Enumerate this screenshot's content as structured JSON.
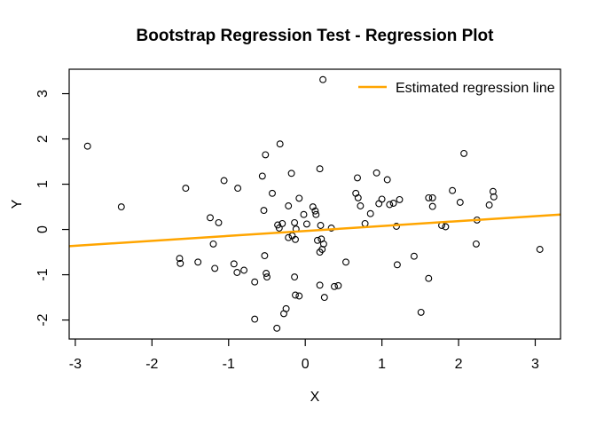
{
  "chart_data": {
    "type": "scatter",
    "title": "Bootstrap Regression Test - Regression Plot",
    "xlabel": "X",
    "ylabel": "Y",
    "xlim": [
      -3.08,
      3.33
    ],
    "ylim": [
      -2.42,
      3.54
    ],
    "x_ticks": [
      -3,
      -2,
      -1,
      0,
      1,
      2,
      3
    ],
    "x_tick_labels": [
      "-3",
      "-2",
      "-1",
      "0",
      "1",
      "2",
      "3"
    ],
    "y_ticks": [
      -2,
      -1,
      0,
      1,
      2,
      3
    ],
    "y_tick_labels": [
      "-2",
      "-1",
      "0",
      "1",
      "2",
      "3"
    ],
    "grid": false,
    "background_color": "#FFFFFF",
    "axis_color": "#000000",
    "legend": {
      "position": "top-right",
      "frame": false,
      "entries": [
        {
          "label": "Estimated regression line",
          "type": "line",
          "color": "#FFA500"
        }
      ]
    },
    "regression_line": {
      "slope": 0.109,
      "intercept": -0.033,
      "color": "#FFA500",
      "width": 2
    },
    "points_style": {
      "marker": "open-circle",
      "color": "#000000"
    },
    "points": [
      [
        -2.84,
        1.84
      ],
      [
        -2.4,
        0.5
      ],
      [
        -1.56,
        0.91
      ],
      [
        -1.24,
        0.26
      ],
      [
        -1.13,
        0.15
      ],
      [
        -1.2,
        -0.32
      ],
      [
        -1.06,
        1.08
      ],
      [
        -0.88,
        0.91
      ],
      [
        -0.56,
        1.18
      ],
      [
        -0.52,
        1.65
      ],
      [
        -0.33,
        1.89
      ],
      [
        -0.43,
        0.8
      ],
      [
        -0.54,
        0.42
      ],
      [
        -0.22,
        0.52
      ],
      [
        -0.18,
        1.24
      ],
      [
        -0.08,
        0.69
      ],
      [
        -0.02,
        0.33
      ],
      [
        0.19,
        1.34
      ],
      [
        0.23,
        3.31
      ],
      [
        0.1,
        0.5
      ],
      [
        0.13,
        0.41
      ],
      [
        0.14,
        0.33
      ],
      [
        -0.36,
        0.1
      ],
      [
        -0.3,
        0.13
      ],
      [
        -0.34,
        0.03
      ],
      [
        -0.14,
        0.15
      ],
      [
        -0.12,
        0.01
      ],
      [
        0.02,
        0.12
      ],
      [
        0.2,
        0.09
      ],
      [
        0.34,
        0.03
      ],
      [
        0.68,
        1.14
      ],
      [
        0.93,
        1.25
      ],
      [
        1.07,
        1.1
      ],
      [
        0.66,
        0.8
      ],
      [
        0.69,
        0.7
      ],
      [
        0.72,
        0.52
      ],
      [
        0.85,
        0.35
      ],
      [
        0.96,
        0.57
      ],
      [
        1.0,
        0.67
      ],
      [
        1.1,
        0.55
      ],
      [
        1.15,
        0.58
      ],
      [
        1.23,
        0.66
      ],
      [
        1.19,
        0.07
      ],
      [
        0.78,
        0.13
      ],
      [
        -0.22,
        -0.18
      ],
      [
        -0.17,
        -0.14
      ],
      [
        -0.13,
        -0.22
      ],
      [
        0.16,
        -0.24
      ],
      [
        0.21,
        -0.21
      ],
      [
        0.24,
        -0.32
      ],
      [
        0.19,
        -0.5
      ],
      [
        0.22,
        -0.44
      ],
      [
        1.61,
        0.7
      ],
      [
        1.66,
        0.7
      ],
      [
        1.66,
        0.51
      ],
      [
        1.92,
        0.86
      ],
      [
        2.02,
        0.6
      ],
      [
        2.07,
        1.68
      ],
      [
        2.4,
        0.54
      ],
      [
        2.45,
        0.84
      ],
      [
        2.46,
        0.72
      ],
      [
        2.24,
        0.21
      ],
      [
        1.78,
        0.09
      ],
      [
        1.83,
        0.06
      ],
      [
        2.23,
        -0.32
      ],
      [
        3.06,
        -0.44
      ],
      [
        -1.64,
        -0.64
      ],
      [
        -1.63,
        -0.75
      ],
      [
        -1.4,
        -0.72
      ],
      [
        -1.18,
        -0.86
      ],
      [
        -0.93,
        -0.76
      ],
      [
        -0.53,
        -0.58
      ],
      [
        0.53,
        -0.72
      ],
      [
        -0.8,
        -0.9
      ],
      [
        -0.89,
        -0.95
      ],
      [
        -0.51,
        -0.97
      ],
      [
        -0.5,
        -1.05
      ],
      [
        -0.14,
        -1.05
      ],
      [
        -0.66,
        -1.16
      ],
      [
        0.19,
        -1.23
      ],
      [
        0.38,
        -1.26
      ],
      [
        0.43,
        -1.24
      ],
      [
        -0.13,
        -1.45
      ],
      [
        -0.08,
        -1.47
      ],
      [
        0.25,
        -1.5
      ],
      [
        -0.25,
        -1.75
      ],
      [
        -0.28,
        -1.86
      ],
      [
        -0.66,
        -1.98
      ],
      [
        -0.37,
        -2.18
      ],
      [
        1.42,
        -0.59
      ],
      [
        1.2,
        -0.78
      ],
      [
        1.61,
        -1.08
      ],
      [
        1.51,
        -1.83
      ]
    ]
  }
}
